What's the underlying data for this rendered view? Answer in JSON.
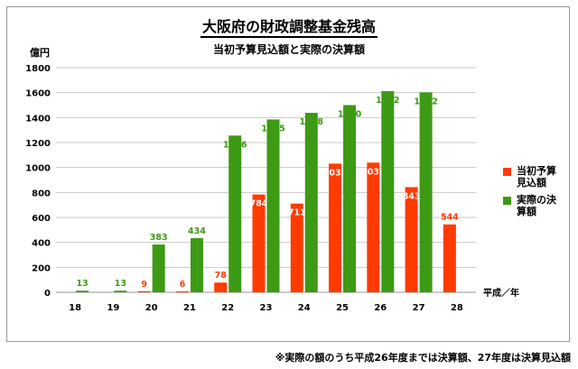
{
  "chart_data": {
    "type": "bar",
    "title": "大阪府の財政調整基金残高",
    "subtitle": "当初予算見込額と実際の決算額",
    "ylabel": "億円",
    "xlabel": "平成／年",
    "ylim": [
      0,
      1800
    ],
    "yticks": [
      0,
      200,
      400,
      600,
      800,
      1000,
      1200,
      1400,
      1600,
      1800
    ],
    "grid": true,
    "legend_position": "right",
    "categories": [
      "18",
      "19",
      "20",
      "21",
      "22",
      "23",
      "24",
      "25",
      "26",
      "27",
      "28"
    ],
    "series": [
      {
        "name": "当初予算見込額",
        "color": "#ff3b00",
        "values": [
          null,
          null,
          9,
          6,
          78,
          784,
          711,
          1031,
          1039,
          843,
          544
        ],
        "labels": [
          "",
          "",
          "9",
          "6",
          "78",
          "784",
          "711",
          "1031",
          "1039",
          "843",
          "544"
        ]
      },
      {
        "name": "実際の決算額",
        "color": "#3d9a14",
        "values": [
          13,
          13,
          383,
          434,
          1256,
          1385,
          1438,
          1500,
          1612,
          1602,
          null
        ],
        "labels": [
          "13",
          "13",
          "383",
          "434",
          "1256",
          "1385",
          "1438",
          "1500",
          "1612",
          "1602",
          ""
        ]
      }
    ],
    "note": "※実際の額のうち平成26年度までは決算額、27年度は決算見込額"
  }
}
